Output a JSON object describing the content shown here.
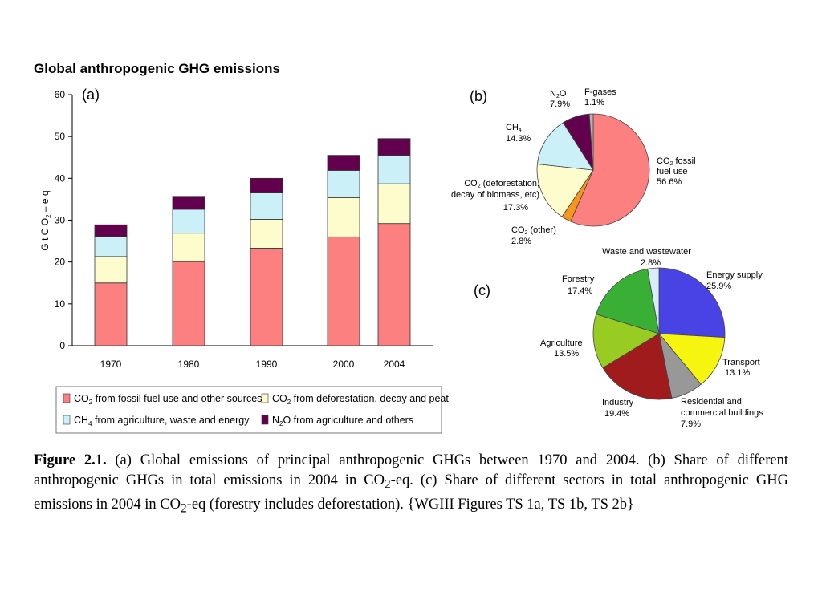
{
  "title": "Global anthropogenic GHG emissions",
  "colors": {
    "fossil": "#fc8080",
    "deforestation": "#fdfccd",
    "ch4": "#ccf0f8",
    "n2o": "#63004e",
    "co2_other": "#f7961c",
    "fgases": "#b3b3b3",
    "energy": "#4943e6",
    "transport": "#f6f510",
    "residential": "#989898",
    "industry": "#a01c1c",
    "agriculture": "#99cc22",
    "forestry": "#3aaf36",
    "waste": "#d9ecf9"
  },
  "chart_data": [
    {
      "type": "bar",
      "stacked": true,
      "panel": "(a)",
      "categories": [
        "1970",
        "1980",
        "1990",
        "2000",
        "2004"
      ],
      "ylabel": "GtCO2-eq",
      "yticks": [
        "0",
        "10",
        "20",
        "30",
        "40",
        "50",
        "60"
      ],
      "ylim": [
        0,
        60
      ],
      "series": [
        {
          "name": "CO2 from fossil fuel use and other sources",
          "color_key": "fossil",
          "values": [
            15.0,
            20.1,
            23.3,
            26.0,
            29.2
          ]
        },
        {
          "name": "CO2 from deforestation, decay and peat",
          "color_key": "deforestation",
          "values": [
            6.3,
            6.8,
            6.9,
            9.4,
            9.5
          ]
        },
        {
          "name": "CH4 from agriculture, waste and energy",
          "color_key": "ch4",
          "values": [
            4.8,
            5.7,
            6.3,
            6.5,
            6.8
          ]
        },
        {
          "name": "N2O from agriculture and others",
          "color_key": "n2o",
          "values": [
            2.8,
            3.1,
            3.5,
            3.6,
            4.0
          ]
        }
      ],
      "legend_placement": "bottom"
    },
    {
      "type": "pie",
      "panel": "(b)",
      "slices": [
        {
          "name": "CO2 fossil fuel use",
          "value": 56.6,
          "label": "56.6%",
          "color_key": "fossil"
        },
        {
          "name": "CO2 (other)",
          "value": 2.8,
          "label": "2.8%",
          "color_key": "co2_other"
        },
        {
          "name": "CO2 (deforestation, decay of biomass, etc)",
          "value": 17.3,
          "label": "17.3%",
          "color_key": "deforestation"
        },
        {
          "name": "CH4",
          "value": 14.3,
          "label": "14.3%",
          "color_key": "ch4"
        },
        {
          "name": "N2O",
          "value": 7.9,
          "label": "7.9%",
          "color_key": "n2o"
        },
        {
          "name": "F-gases",
          "value": 1.1,
          "label": "1.1%",
          "color_key": "fgases"
        }
      ]
    },
    {
      "type": "pie",
      "panel": "(c)",
      "slices": [
        {
          "name": "Energy supply",
          "value": 25.9,
          "label": "25.9%",
          "color_key": "energy"
        },
        {
          "name": "Transport",
          "value": 13.1,
          "label": "13.1%",
          "color_key": "transport"
        },
        {
          "name": "Residential and commercial buildings",
          "value": 7.9,
          "label": "7.9%",
          "color_key": "residential"
        },
        {
          "name": "Industry",
          "value": 19.4,
          "label": "19.4%",
          "color_key": "industry"
        },
        {
          "name": "Agriculture",
          "value": 13.5,
          "label": "13.5%",
          "color_key": "agriculture"
        },
        {
          "name": "Forestry",
          "value": 17.4,
          "label": "17.4%",
          "color_key": "forestry"
        },
        {
          "name": "Waste and wastewater",
          "value": 2.8,
          "label": "2.8%",
          "color_key": "waste"
        }
      ]
    }
  ],
  "caption": {
    "figure_label": "Figure 2.1.",
    "text_1": " (a) Global emissions of principal anthropogenic GHGs between 1970 and 2004. (b) Share of different anthropogenic GHGs in total emissions in 2004 in CO",
    "sub_1": "2",
    "text_2": "-eq. (c) Share of different sectors in total anthropogenic GHG emissions in 2004 in CO",
    "sub_2": "2",
    "text_3": "-eq (forestry includes deforestation). {WGIII Figures TS 1a, TS 1b, TS 2b}"
  }
}
